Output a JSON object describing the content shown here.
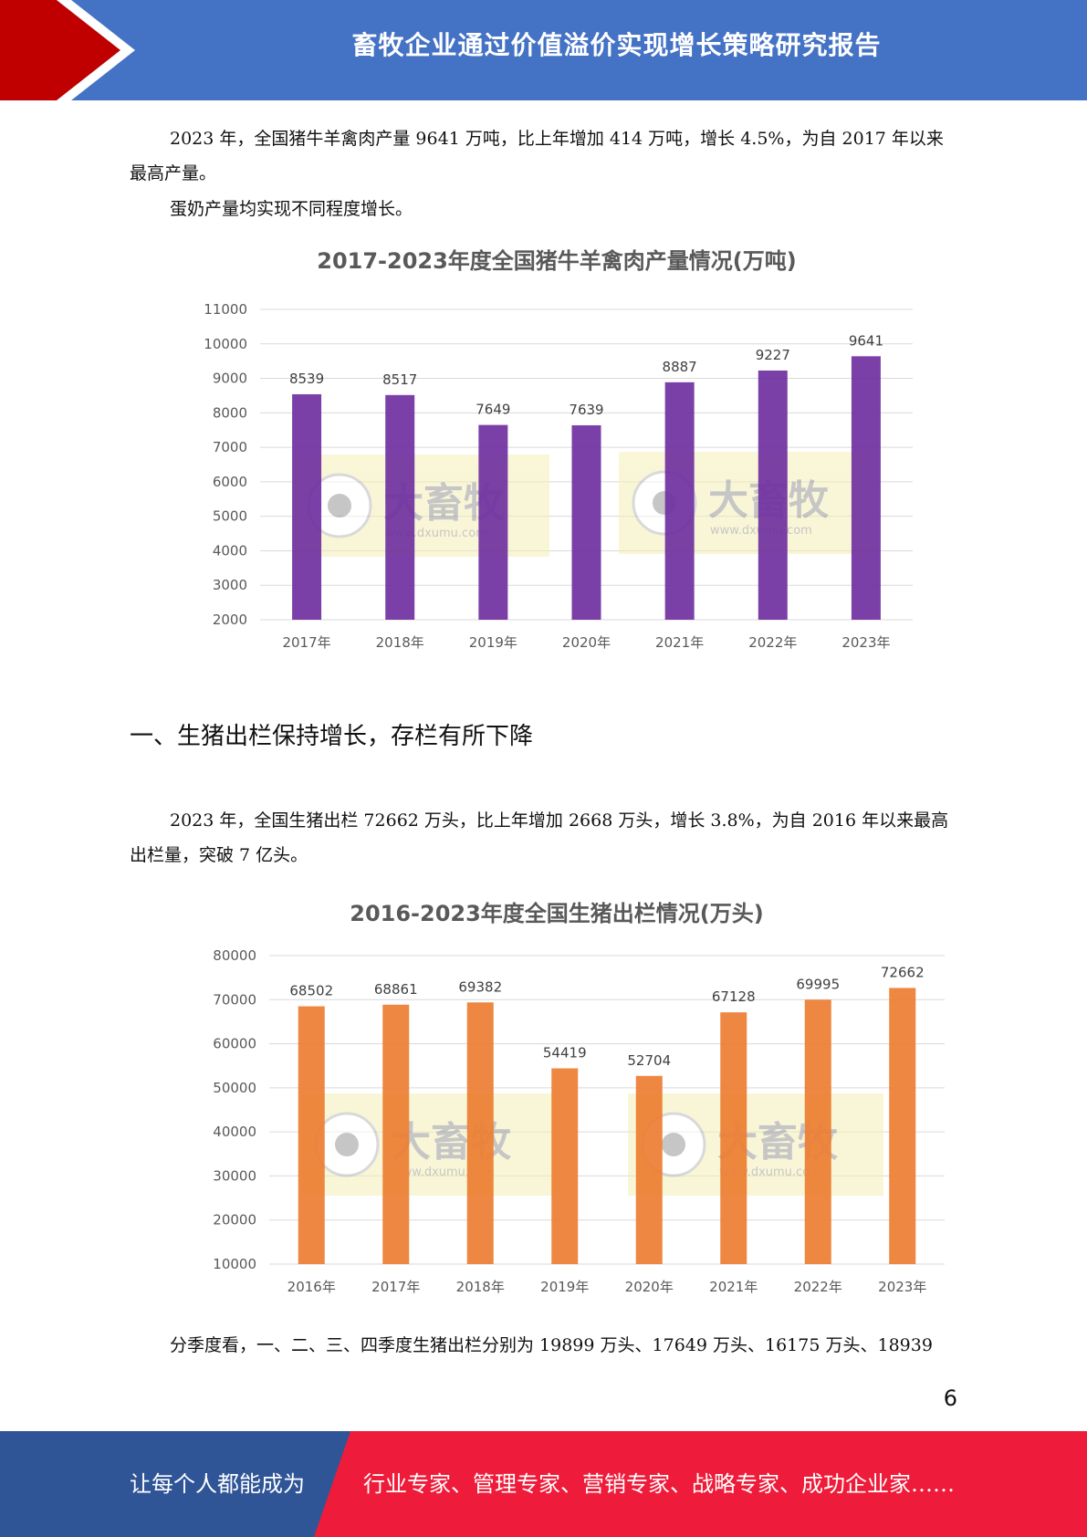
{
  "header": {
    "title": "畜牧企业通过价值溢价实现增长策略研究报告",
    "band_color": "#4472c4",
    "accent_color": "#c00000"
  },
  "paragraphs": {
    "p1": "2023 年，全国猪牛羊禽肉产量 9641 万吨，比上年增加 414 万吨，增长 4.5%，为自 2017 年以来最高产量。",
    "p2": "蛋奶产量均实现不同程度增长。",
    "p3": "2023 年，全国生猪出栏 72662 万头，比上年增加 2668 万头，增长 3.8%，为自 2016 年以来最高出栏量，突破 7 亿头。",
    "p4": "分季度看，一、二、三、四季度生猪出栏分别为 19899 万头、17649 万头、16175 万头、18939"
  },
  "section_heading": "一、生猪出栏保持增长，存栏有所下降",
  "chart_data": [
    {
      "type": "bar",
      "title": "2017-2023年度全国猪牛羊禽肉产量情况(万吨)",
      "categories": [
        "2017年",
        "2018年",
        "2019年",
        "2020年",
        "2021年",
        "2022年",
        "2023年"
      ],
      "values": [
        8539,
        8517,
        7649,
        7639,
        8887,
        9227,
        9641
      ],
      "ylim": [
        2000,
        11000
      ],
      "yticks": [
        2000,
        3000,
        4000,
        5000,
        6000,
        7000,
        8000,
        9000,
        10000,
        11000
      ],
      "bar_color": "#7030a0",
      "grid": true,
      "data_labels": true
    },
    {
      "type": "bar",
      "title": "2016-2023年度全国生猪出栏情况(万头)",
      "categories": [
        "2016年",
        "2017年",
        "2018年",
        "2019年",
        "2020年",
        "2021年",
        "2022年",
        "2023年"
      ],
      "values": [
        68502,
        68861,
        69382,
        54419,
        52704,
        67128,
        69995,
        72662
      ],
      "ylim": [
        10000,
        80000
      ],
      "yticks": [
        10000,
        20000,
        30000,
        40000,
        50000,
        60000,
        70000,
        80000
      ],
      "bar_color": "#ed7d31",
      "grid": true,
      "data_labels": true
    }
  ],
  "watermark": {
    "text": "大畜牧",
    "url_text": "www.dxumu.com"
  },
  "page_number": "6",
  "footer": {
    "left": "让每个人都能成为",
    "right": "行业专家、管理专家、营销专家、战略专家、成功企业家……",
    "left_color": "#2f5597",
    "right_color": "#ee1c3a"
  }
}
